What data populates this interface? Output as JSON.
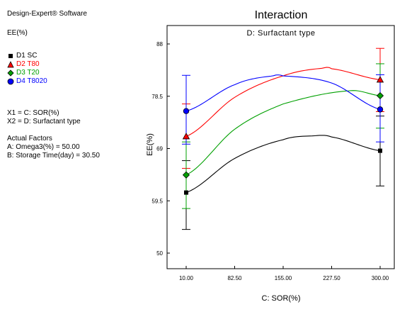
{
  "software": "Design-Expert® Software",
  "response": "EE(%)",
  "x1_def": "X1 = C: SOR(%)",
  "x2_def": "X2 = D: Surfactant type",
  "actual_factors_heading": "Actual Factors",
  "actual_factors": [
    "A: Omega3(%) = 50.00",
    "B: Storage Time(day) = 30.50"
  ],
  "legend": [
    {
      "label": "D1 SC",
      "color": "#000000",
      "marker": "square-marker"
    },
    {
      "label": "D2 T80",
      "color": "#ff0000",
      "marker": "triangle-marker"
    },
    {
      "label": "D3 T20",
      "color": "#00a000",
      "marker": "diamond-marker"
    },
    {
      "label": "D4 T8020",
      "color": "#0000ff",
      "marker": "circle-marker"
    }
  ],
  "chart_data": {
    "type": "line",
    "title": "Interaction",
    "subtitle": "D: Surfactant type",
    "xlabel": "C: SOR(%)",
    "ylabel": "EE(%)",
    "xlim": [
      10,
      300
    ],
    "ylim": [
      50,
      88
    ],
    "x_ticks": [
      "10.00",
      "82.50",
      "155.00",
      "227.50",
      "300.00"
    ],
    "y_ticks": [
      "50",
      "59.5",
      "69",
      "78.5",
      "88"
    ],
    "series": [
      {
        "name": "D1 SC",
        "color": "#000000",
        "marker": "square",
        "curve": {
          "x": [
            10,
            82.5,
            155,
            200,
            227.5,
            300
          ],
          "y": [
            61,
            67.2,
            70.6,
            71.3,
            71.1,
            68.6
          ]
        },
        "points": [
          {
            "x": 10,
            "y": 61,
            "err_low": 54.3,
            "err_high": 66.8
          },
          {
            "x": 300,
            "y": 68.6,
            "err_low": 62.2,
            "err_high": 74.9
          }
        ]
      },
      {
        "name": "D2 T80",
        "color": "#ff0000",
        "marker": "triangle",
        "curve": {
          "x": [
            10,
            82.5,
            155,
            215,
            227.5,
            300
          ],
          "y": [
            71.2,
            78.3,
            82.2,
            83.6,
            83.5,
            81.5
          ]
        },
        "points": [
          {
            "x": 10,
            "y": 71.2,
            "err_low": 65.4,
            "err_high": 77.1
          },
          {
            "x": 300,
            "y": 81.5,
            "err_low": 75.7,
            "err_high": 87.2
          }
        ]
      },
      {
        "name": "D3 T20",
        "color": "#00a000",
        "marker": "diamond",
        "curve": {
          "x": [
            10,
            82.5,
            155,
            255,
            300
          ],
          "y": [
            64.2,
            72.5,
            77.1,
            79.5,
            78.6
          ]
        },
        "points": [
          {
            "x": 10,
            "y": 64.2,
            "err_low": 58.1,
            "err_high": 70.2
          },
          {
            "x": 300,
            "y": 78.6,
            "err_low": 72.7,
            "err_high": 84.4
          }
        ]
      },
      {
        "name": "D4 T8020",
        "color": "#0000ff",
        "marker": "circle",
        "curve": {
          "x": [
            10,
            82.5,
            140,
            155,
            227.5,
            300
          ],
          "y": [
            75.8,
            80.6,
            82.2,
            82.2,
            80.9,
            76.1
          ]
        },
        "points": [
          {
            "x": 10,
            "y": 75.8,
            "err_low": 69.8,
            "err_high": 82.3
          },
          {
            "x": 300,
            "y": 76.1,
            "err_low": 70.2,
            "err_high": 82.4
          }
        ]
      }
    ]
  }
}
